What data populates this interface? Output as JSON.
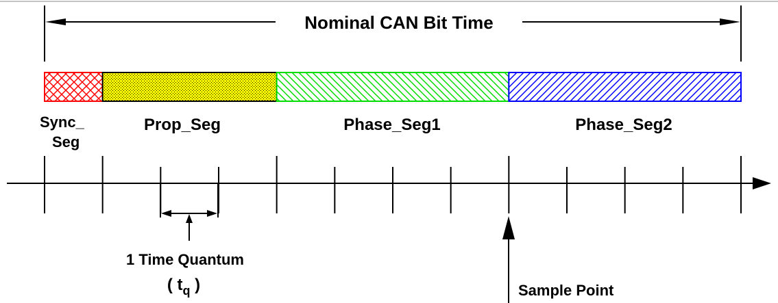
{
  "title": "Nominal CAN Bit Time",
  "segments": [
    {
      "id": "sync",
      "label_lines": [
        "Sync_",
        "Seg"
      ],
      "color": "#ff0000",
      "pattern": "crosshatch",
      "quanta": 1
    },
    {
      "id": "prop",
      "label_lines": [
        "Prop_Seg"
      ],
      "color": "#ffff00",
      "pattern": "dotted",
      "quanta": 3
    },
    {
      "id": "phase1",
      "label_lines": [
        "Phase_Seg1"
      ],
      "color": "#00dd00",
      "pattern": "diagonal-back",
      "quanta": 4
    },
    {
      "id": "phase2",
      "label_lines": [
        "Phase_Seg2"
      ],
      "color": "#0000ff",
      "pattern": "diagonal-forward",
      "quanta": 4
    }
  ],
  "total_quanta": 12,
  "time_quantum": {
    "label": "1 Time Quantum",
    "symbol": "t",
    "subscript": "q"
  },
  "sample_point": {
    "label": "Sample Point"
  }
}
